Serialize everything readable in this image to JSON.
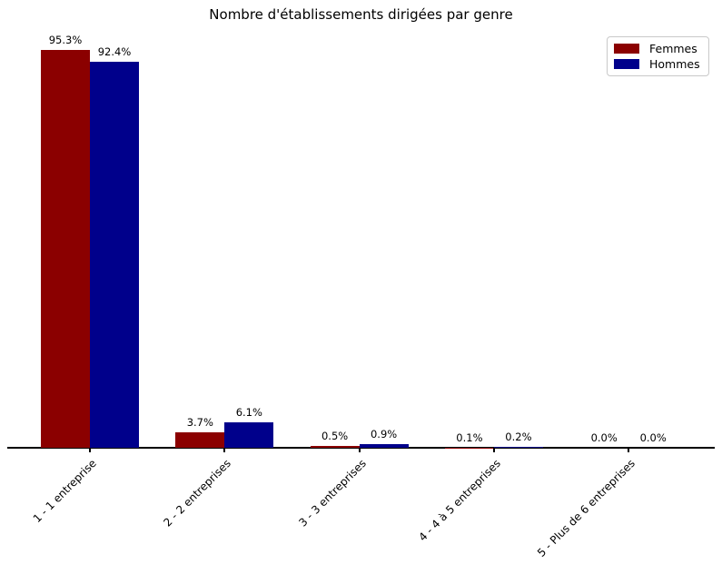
{
  "chart_data": {
    "type": "bar",
    "title": "Nombre d'établissements dirigées par genre",
    "categories": [
      "1 - 1 entreprise",
      "2 - 2 entreprises",
      "3 - 3 entreprises",
      "4 - 4 à 5 entreprises",
      "5 - Plus de 6 entreprises"
    ],
    "series": [
      {
        "name": "Femmes",
        "color": "#8b0000",
        "values": [
          95.3,
          3.7,
          0.5,
          0.1,
          0.0
        ]
      },
      {
        "name": "Hommes",
        "color": "#00008b",
        "values": [
          92.4,
          6.1,
          0.9,
          0.2,
          0.0
        ]
      }
    ],
    "value_label_suffix": "%",
    "xlabel": "",
    "ylabel": "",
    "ylim": [
      0,
      100
    ],
    "grid": false,
    "legend_position": "upper right",
    "background": "#ffffff",
    "axis_color": "#000000",
    "x_tick_label_rotation": 45
  }
}
